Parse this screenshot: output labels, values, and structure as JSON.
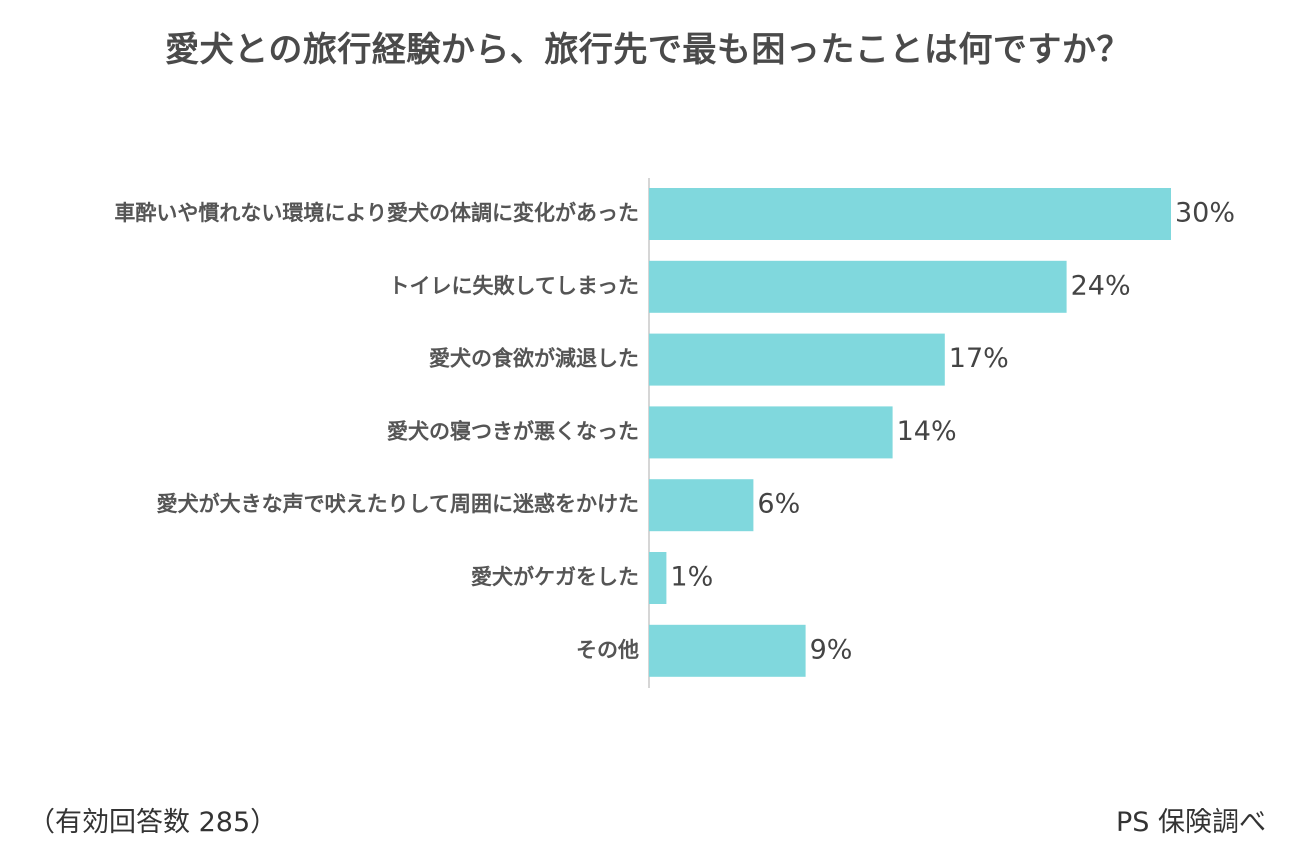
{
  "chart_data": {
    "type": "bar",
    "orientation": "horizontal",
    "title": "愛犬との旅行経験から、旅行先で最も困ったことは何ですか？",
    "categories": [
      "車酔いや慣れない環境により愛犬の体調に変化があった",
      "トイレに失敗してしまった",
      "愛犬の食欲が減退した",
      "愛犬の寝つきが悪くなった",
      "愛犬が大きな声で吠えたりして周囲に迷惑をかけた",
      "愛犬がケガをした",
      "その他"
    ],
    "values": [
      30,
      24,
      17,
      14,
      6,
      1,
      9
    ],
    "value_labels": [
      "30%",
      "24%",
      "17%",
      "14%",
      "6%",
      "1%",
      "9%"
    ],
    "unit": "%",
    "xlim": [
      0,
      30
    ],
    "grid": false,
    "legend": "none",
    "bar_color": "#80d8dd"
  },
  "footnotes": {
    "respondents": "（有効回答数 285）",
    "source": "PS 保険調べ"
  }
}
